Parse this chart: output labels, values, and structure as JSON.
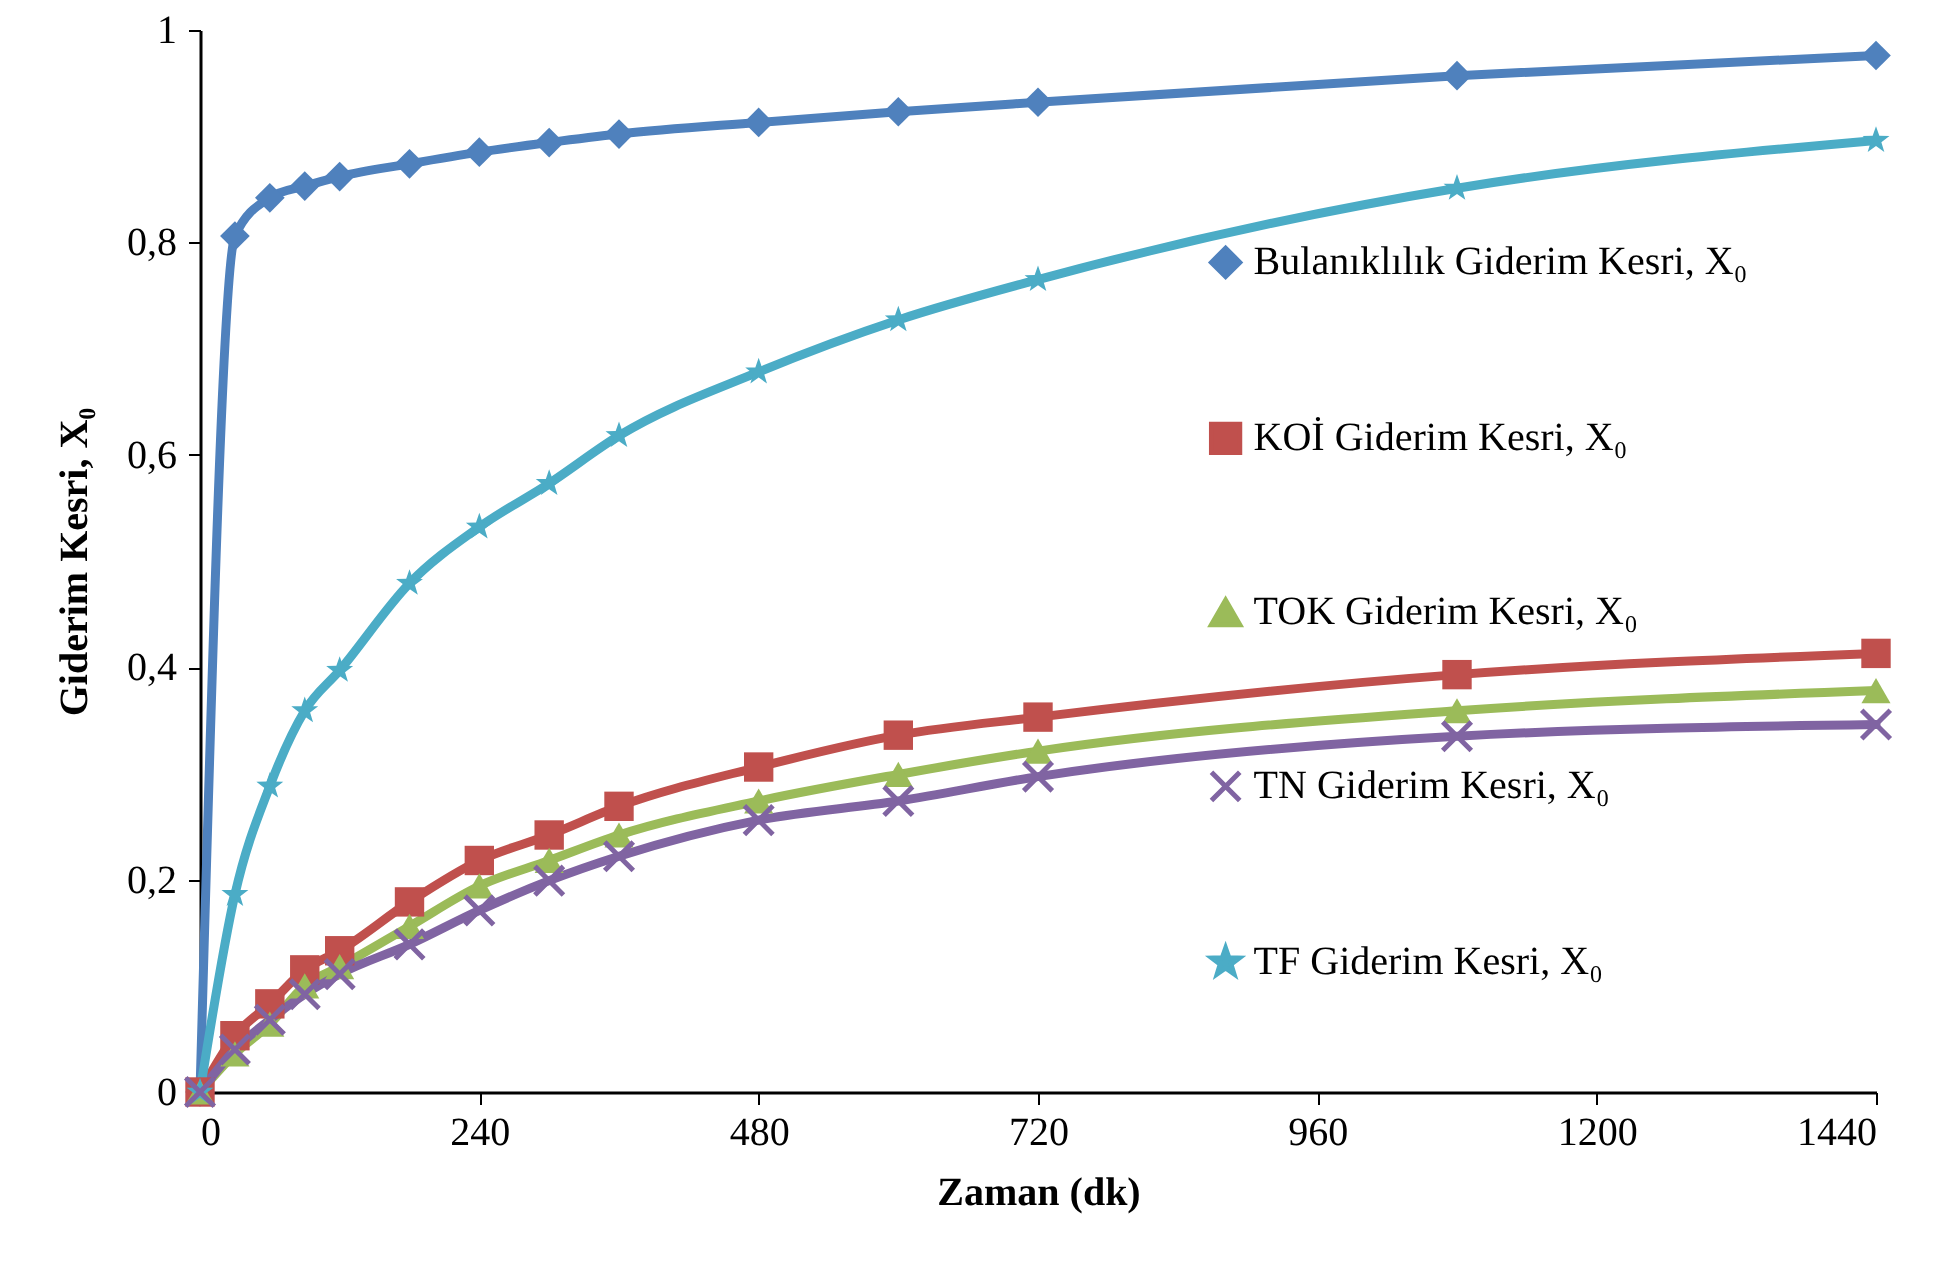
{
  "chart_data": {
    "type": "line",
    "xlabel": "Zaman (dk)",
    "ylabel": "Giderim Kesri, X₀",
    "x": [
      0,
      30,
      60,
      90,
      120,
      180,
      240,
      300,
      360,
      480,
      600,
      720,
      1080,
      1440
    ],
    "xlim": [
      0,
      1440
    ],
    "xticks": [
      0,
      240,
      480,
      720,
      960,
      1200,
      1440
    ],
    "ylim": [
      0,
      1
    ],
    "yticks": [
      0,
      {
        "value": 0.2,
        "label": "0,2"
      },
      {
        "value": 0.4,
        "label": "0,4"
      },
      {
        "value": 0.6,
        "label": "0,6"
      },
      {
        "value": 0.8,
        "label": "0,8"
      },
      1
    ],
    "grid": false,
    "legend": "right",
    "line_style": "solid",
    "series": [
      {
        "name": "Bulanıklılık Giderim Kesri, X₀",
        "color": "#4f81bd",
        "marker": "diamond",
        "values": [
          0,
          0.806,
          0.842,
          0.853,
          0.862,
          0.874,
          0.885,
          0.894,
          0.902,
          0.913,
          0.923,
          0.932,
          0.957,
          0.976
        ]
      },
      {
        "name": "KOİ Giderim Kesri, X₀",
        "color": "#c0504d",
        "marker": "square",
        "values": [
          0,
          0.053,
          0.083,
          0.115,
          0.133,
          0.179,
          0.218,
          0.242,
          0.269,
          0.306,
          0.336,
          0.353,
          0.393,
          0.413
        ]
      },
      {
        "name": "TOK Giderim Kesri, X₀",
        "color": "#9bbb59",
        "marker": "triangle",
        "values": [
          0,
          0.036,
          0.064,
          0.1,
          0.118,
          0.156,
          0.194,
          0.218,
          0.242,
          0.274,
          0.299,
          0.321,
          0.359,
          0.378
        ]
      },
      {
        "name": "TN Giderim Kesri, X₀",
        "color": "#8064a2",
        "marker": "cross",
        "values": [
          0,
          0.04,
          0.068,
          0.092,
          0.111,
          0.139,
          0.171,
          0.199,
          0.222,
          0.256,
          0.274,
          0.297,
          0.335,
          0.346
        ]
      },
      {
        "name": "TF Giderim Kesri, X₀",
        "color": "#4bacc6",
        "marker": "star",
        "values": [
          0,
          0.186,
          0.288,
          0.359,
          0.397,
          0.479,
          0.532,
          0.573,
          0.618,
          0.678,
          0.727,
          0.765,
          0.851,
          0.896
        ]
      }
    ]
  }
}
